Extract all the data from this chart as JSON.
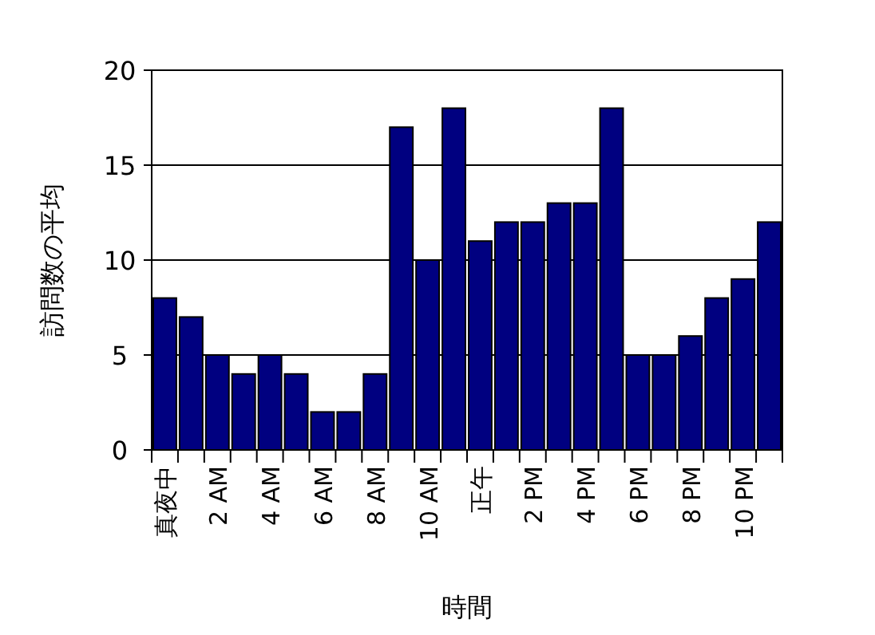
{
  "chart_data": {
    "type": "bar",
    "xlabel": "時間",
    "ylabel": "訪問数の平均",
    "categories": [
      "真夜中",
      null,
      "2 AM",
      null,
      "4 AM",
      null,
      "6 AM",
      null,
      "8 AM",
      null,
      "10 AM",
      null,
      "正午",
      null,
      "2 PM",
      null,
      "4 PM",
      null,
      "6 PM",
      null,
      "8 PM",
      null,
      "10 PM",
      null
    ],
    "values": [
      8,
      7,
      5,
      4,
      5,
      4,
      2,
      2,
      4,
      17,
      10,
      18,
      11,
      12,
      12,
      13,
      13,
      18,
      5,
      5,
      6,
      8,
      9,
      12
    ],
    "color": "#000080",
    "ylim": [
      0,
      20
    ],
    "yticks": [
      0,
      5,
      10,
      15,
      20
    ],
    "grid": "y"
  }
}
